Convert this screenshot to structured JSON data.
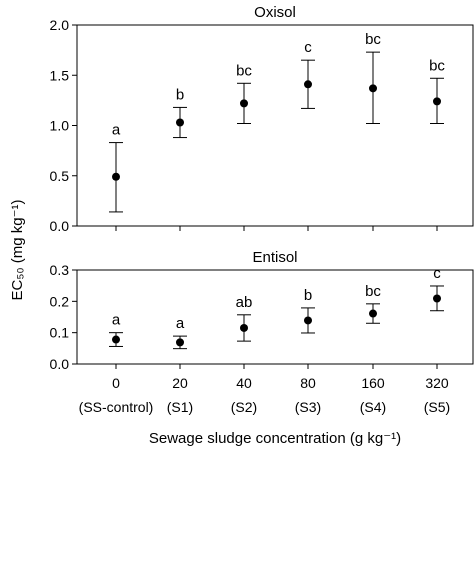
{
  "x_labels": {
    "concentrations": [
      "0",
      "20",
      "40",
      "80",
      "160",
      "320"
    ],
    "codes": [
      "(SS-control)",
      "(S1)",
      "(S2)",
      "(S3)",
      "(S4)",
      "(S5)"
    ]
  },
  "xlabel": "Sewage sludge concentration (g kg⁻¹)",
  "ylabel": "EC₅₀ (mg kg⁻¹)",
  "chart_data": [
    {
      "type": "scatter",
      "title": "Oxisol",
      "categories": [
        "0",
        "20",
        "40",
        "80",
        "160",
        "320"
      ],
      "values": [
        0.49,
        1.03,
        1.22,
        1.41,
        1.37,
        1.24
      ],
      "err_low": [
        0.14,
        0.88,
        1.02,
        1.17,
        1.02,
        1.02
      ],
      "err_high": [
        0.83,
        1.18,
        1.42,
        1.65,
        1.73,
        1.47
      ],
      "letters": [
        "a",
        "b",
        "bc",
        "c",
        "bc",
        "bc"
      ],
      "ylim": [
        0,
        2.0
      ],
      "yticks": [
        "0.0",
        "0.5",
        "1.0",
        "1.5",
        "2.0"
      ],
      "ytick_values": [
        0,
        0.5,
        1.0,
        1.5,
        2.0
      ],
      "grid": false
    },
    {
      "type": "scatter",
      "title": "Entisol",
      "categories": [
        "0",
        "20",
        "40",
        "80",
        "160",
        "320"
      ],
      "values": [
        0.078,
        0.069,
        0.115,
        0.139,
        0.161,
        0.209
      ],
      "err_low": [
        0.056,
        0.049,
        0.073,
        0.099,
        0.13,
        0.17
      ],
      "err_high": [
        0.1,
        0.089,
        0.157,
        0.179,
        0.192,
        0.249
      ],
      "letters": [
        "a",
        "a",
        "ab",
        "b",
        "bc",
        "c"
      ],
      "ylim": [
        0,
        0.3
      ],
      "yticks": [
        "0.0",
        "0.1",
        "0.2",
        "0.3"
      ],
      "ytick_values": [
        0,
        0.1,
        0.2,
        0.3
      ],
      "grid": false
    }
  ]
}
